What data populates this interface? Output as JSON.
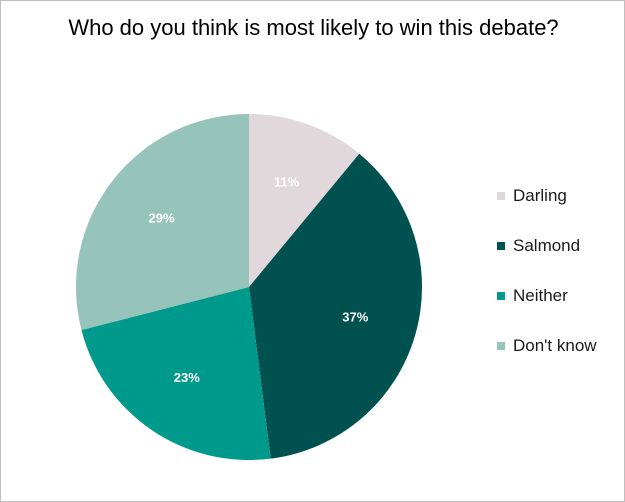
{
  "chart_data": {
    "type": "pie",
    "title": "Who do you think is most likely to win this debate?",
    "categories": [
      "Darling",
      "Salmond",
      "Neither",
      "Don't know"
    ],
    "values": [
      11,
      37,
      23,
      29
    ],
    "labels": [
      "11%",
      "37%",
      "23%",
      "29%"
    ],
    "colors": [
      "#e0d8da",
      "#00514f",
      "#009a8c",
      "#96c3ba"
    ],
    "label_colors": [
      "#ffffff",
      "#ffffff",
      "#ffffff",
      "#ffffff"
    ],
    "legend_position": "right",
    "start_angle_deg": 0,
    "direction": "clockwise"
  }
}
